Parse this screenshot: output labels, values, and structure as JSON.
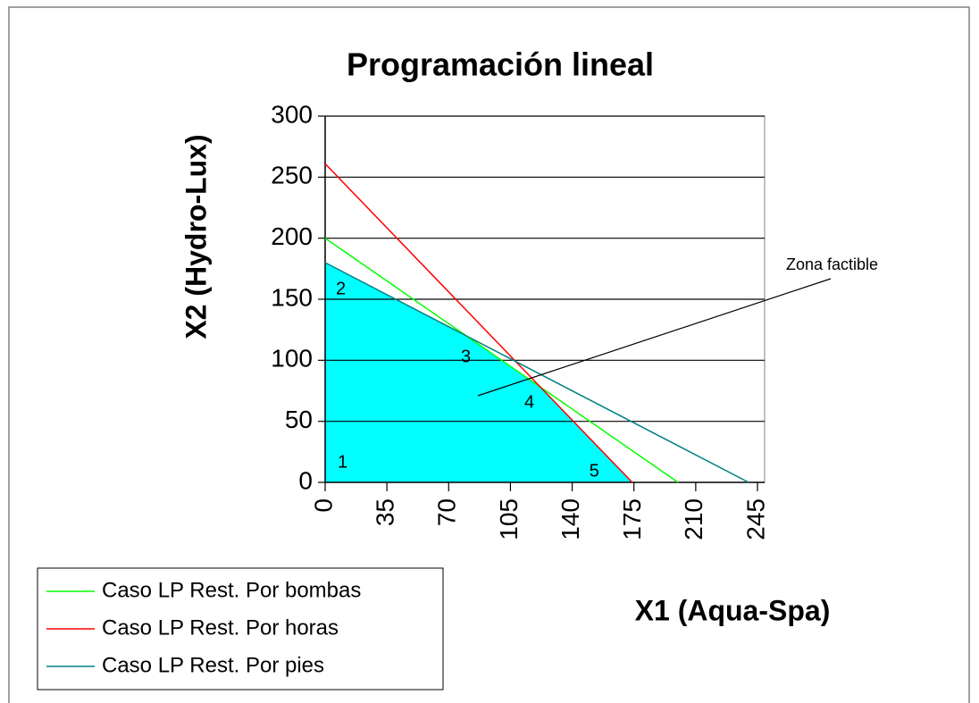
{
  "chart_data": {
    "type": "line",
    "title": "Programación lineal",
    "x_label": "X1 (Aqua-Spa)",
    "y_label": "X2 (Hydro-Lux)",
    "xlim": [
      0,
      245
    ],
    "ylim": [
      0,
      300
    ],
    "xticks": [
      0,
      35,
      70,
      105,
      140,
      175,
      210,
      245
    ],
    "yticks": [
      0,
      50,
      100,
      150,
      200,
      250,
      300
    ],
    "grid": true,
    "legend": "bottom-left",
    "series": [
      {
        "name": "Caso LP Rest. Por bombas",
        "color": "#00ff00",
        "x": [
          0,
          200
        ],
        "values": [
          200,
          0
        ]
      },
      {
        "name": "Caso LP Rest. Por horas",
        "color": "#ff0000",
        "x": [
          0,
          174
        ],
        "values": [
          261,
          0
        ]
      },
      {
        "name": "Caso LP Rest. Por  pies",
        "color": "#008080",
        "x": [
          0,
          240
        ],
        "values": [
          180,
          0
        ]
      }
    ],
    "feasible_region": {
      "color": "#00ffff",
      "x": [
        0,
        0,
        80,
        122,
        174
      ],
      "values": [
        0,
        180,
        120,
        78,
        0
      ],
      "labels": [
        "1",
        "2",
        "3",
        "4",
        "5"
      ]
    },
    "annotation": "Zona factible"
  }
}
